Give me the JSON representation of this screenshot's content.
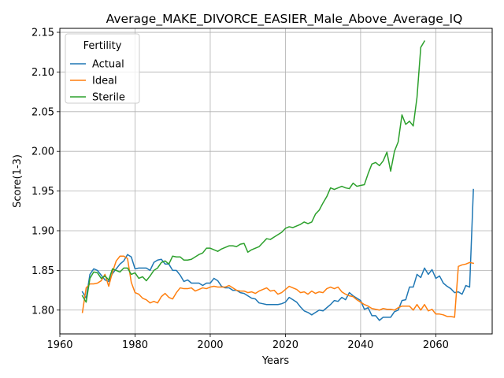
{
  "chart_data": {
    "type": "line",
    "title": "Average_MAKE_DIVORCE_EASIER_Male_Above_Average_IQ",
    "xlabel": "Years",
    "ylabel": "Score(1-3)",
    "xlim": [
      1960,
      2075
    ],
    "ylim": [
      1.77,
      2.155
    ],
    "xticks": [
      1960,
      1980,
      2000,
      2020,
      2040,
      2060
    ],
    "yticks": [
      1.8,
      1.85,
      1.9,
      1.95,
      2.0,
      2.05,
      2.1,
      2.15
    ],
    "grid": true,
    "legend": {
      "title": "Fertility",
      "placement": "top-left"
    },
    "series": [
      {
        "name": "Actual",
        "color": "#1f77b4",
        "points": [
          [
            1966,
            1.823
          ],
          [
            1967,
            1.815
          ],
          [
            1968,
            1.845
          ],
          [
            1969,
            1.852
          ],
          [
            1970,
            1.85
          ],
          [
            1971,
            1.844
          ],
          [
            1972,
            1.838
          ],
          [
            1973,
            1.836
          ],
          [
            1974,
            1.846
          ],
          [
            1975,
            1.852
          ],
          [
            1976,
            1.858
          ],
          [
            1977,
            1.862
          ],
          [
            1978,
            1.87
          ],
          [
            1979,
            1.867
          ],
          [
            1980,
            1.852
          ],
          [
            1981,
            1.853
          ],
          [
            1982,
            1.853
          ],
          [
            1983,
            1.853
          ],
          [
            1984,
            1.85
          ],
          [
            1985,
            1.86
          ],
          [
            1986,
            1.863
          ],
          [
            1987,
            1.864
          ],
          [
            1988,
            1.858
          ],
          [
            1989,
            1.858
          ],
          [
            1990,
            1.85
          ],
          [
            1991,
            1.85
          ],
          [
            1992,
            1.844
          ],
          [
            1993,
            1.836
          ],
          [
            1994,
            1.838
          ],
          [
            1995,
            1.834
          ],
          [
            1996,
            1.834
          ],
          [
            1997,
            1.834
          ],
          [
            1998,
            1.831
          ],
          [
            1999,
            1.834
          ],
          [
            2000,
            1.834
          ],
          [
            2001,
            1.84
          ],
          [
            2002,
            1.837
          ],
          [
            2003,
            1.83
          ],
          [
            2004,
            1.828
          ],
          [
            2005,
            1.828
          ],
          [
            2006,
            1.825
          ],
          [
            2007,
            1.825
          ],
          [
            2008,
            1.822
          ],
          [
            2009,
            1.821
          ],
          [
            2010,
            1.818
          ],
          [
            2011,
            1.815
          ],
          [
            2012,
            1.814
          ],
          [
            2013,
            1.809
          ],
          [
            2014,
            1.808
          ],
          [
            2015,
            1.807
          ],
          [
            2016,
            1.807
          ],
          [
            2017,
            1.807
          ],
          [
            2018,
            1.807
          ],
          [
            2019,
            1.808
          ],
          [
            2020,
            1.81
          ],
          [
            2021,
            1.816
          ],
          [
            2022,
            1.813
          ],
          [
            2023,
            1.81
          ],
          [
            2024,
            1.804
          ],
          [
            2025,
            1.799
          ],
          [
            2026,
            1.797
          ],
          [
            2027,
            1.794
          ],
          [
            2028,
            1.797
          ],
          [
            2029,
            1.8
          ],
          [
            2030,
            1.799
          ],
          [
            2031,
            1.803
          ],
          [
            2032,
            1.807
          ],
          [
            2033,
            1.812
          ],
          [
            2034,
            1.811
          ],
          [
            2035,
            1.816
          ],
          [
            2036,
            1.813
          ],
          [
            2037,
            1.822
          ],
          [
            2038,
            1.818
          ],
          [
            2039,
            1.815
          ],
          [
            2040,
            1.812
          ],
          [
            2041,
            1.801
          ],
          [
            2042,
            1.803
          ],
          [
            2043,
            1.793
          ],
          [
            2044,
            1.793
          ],
          [
            2045,
            1.787
          ],
          [
            2046,
            1.791
          ],
          [
            2047,
            1.791
          ],
          [
            2048,
            1.791
          ],
          [
            2049,
            1.798
          ],
          [
            2050,
            1.8
          ],
          [
            2051,
            1.812
          ],
          [
            2052,
            1.813
          ],
          [
            2053,
            1.829
          ],
          [
            2054,
            1.829
          ],
          [
            2055,
            1.845
          ],
          [
            2056,
            1.841
          ],
          [
            2057,
            1.853
          ],
          [
            2058,
            1.845
          ],
          [
            2059,
            1.851
          ],
          [
            2060,
            1.84
          ],
          [
            2061,
            1.843
          ],
          [
            2062,
            1.834
          ],
          [
            2063,
            1.83
          ],
          [
            2064,
            1.827
          ],
          [
            2065,
            1.822
          ],
          [
            2066,
            1.823
          ],
          [
            2067,
            1.82
          ],
          [
            2068,
            1.831
          ],
          [
            2069,
            1.829
          ],
          [
            2070,
            1.952
          ]
        ]
      },
      {
        "name": "Ideal",
        "color": "#ff7f0e",
        "points": [
          [
            1966,
            1.797
          ],
          [
            1967,
            1.828
          ],
          [
            1968,
            1.833
          ],
          [
            1969,
            1.833
          ],
          [
            1970,
            1.834
          ],
          [
            1971,
            1.837
          ],
          [
            1972,
            1.845
          ],
          [
            1973,
            1.83
          ],
          [
            1974,
            1.848
          ],
          [
            1975,
            1.862
          ],
          [
            1976,
            1.868
          ],
          [
            1977,
            1.868
          ],
          [
            1978,
            1.865
          ],
          [
            1979,
            1.835
          ],
          [
            1980,
            1.822
          ],
          [
            1981,
            1.82
          ],
          [
            1982,
            1.815
          ],
          [
            1983,
            1.813
          ],
          [
            1984,
            1.809
          ],
          [
            1985,
            1.811
          ],
          [
            1986,
            1.809
          ],
          [
            1987,
            1.817
          ],
          [
            1988,
            1.821
          ],
          [
            1989,
            1.816
          ],
          [
            1990,
            1.814
          ],
          [
            1991,
            1.822
          ],
          [
            1992,
            1.828
          ],
          [
            1993,
            1.827
          ],
          [
            1994,
            1.827
          ],
          [
            1995,
            1.828
          ],
          [
            1996,
            1.824
          ],
          [
            1997,
            1.826
          ],
          [
            1998,
            1.828
          ],
          [
            1999,
            1.827
          ],
          [
            2000,
            1.829
          ],
          [
            2001,
            1.83
          ],
          [
            2002,
            1.829
          ],
          [
            2003,
            1.829
          ],
          [
            2004,
            1.829
          ],
          [
            2005,
            1.831
          ],
          [
            2006,
            1.828
          ],
          [
            2007,
            1.825
          ],
          [
            2008,
            1.824
          ],
          [
            2009,
            1.824
          ],
          [
            2010,
            1.822
          ],
          [
            2011,
            1.823
          ],
          [
            2012,
            1.821
          ],
          [
            2013,
            1.824
          ],
          [
            2014,
            1.826
          ],
          [
            2015,
            1.828
          ],
          [
            2016,
            1.824
          ],
          [
            2017,
            1.825
          ],
          [
            2018,
            1.82
          ],
          [
            2019,
            1.822
          ],
          [
            2020,
            1.826
          ],
          [
            2021,
            1.83
          ],
          [
            2022,
            1.828
          ],
          [
            2023,
            1.826
          ],
          [
            2024,
            1.822
          ],
          [
            2025,
            1.823
          ],
          [
            2026,
            1.82
          ],
          [
            2027,
            1.824
          ],
          [
            2028,
            1.821
          ],
          [
            2029,
            1.823
          ],
          [
            2030,
            1.822
          ],
          [
            2031,
            1.827
          ],
          [
            2032,
            1.829
          ],
          [
            2033,
            1.827
          ],
          [
            2034,
            1.829
          ],
          [
            2035,
            1.823
          ],
          [
            2036,
            1.82
          ],
          [
            2037,
            1.818
          ],
          [
            2038,
            1.817
          ],
          [
            2039,
            1.813
          ],
          [
            2040,
            1.81
          ],
          [
            2041,
            1.807
          ],
          [
            2042,
            1.805
          ],
          [
            2043,
            1.802
          ],
          [
            2044,
            1.801
          ],
          [
            2045,
            1.8
          ],
          [
            2046,
            1.802
          ],
          [
            2047,
            1.801
          ],
          [
            2048,
            1.801
          ],
          [
            2049,
            1.8
          ],
          [
            2050,
            1.803
          ],
          [
            2051,
            1.805
          ],
          [
            2052,
            1.805
          ],
          [
            2053,
            1.805
          ],
          [
            2054,
            1.8
          ],
          [
            2055,
            1.807
          ],
          [
            2056,
            1.8
          ],
          [
            2057,
            1.807
          ],
          [
            2058,
            1.799
          ],
          [
            2059,
            1.801
          ],
          [
            2060,
            1.795
          ],
          [
            2061,
            1.795
          ],
          [
            2062,
            1.794
          ],
          [
            2063,
            1.792
          ],
          [
            2064,
            1.792
          ],
          [
            2065,
            1.791
          ],
          [
            2066,
            1.855
          ],
          [
            2067,
            1.857
          ],
          [
            2068,
            1.858
          ],
          [
            2069,
            1.86
          ],
          [
            2070,
            1.859
          ]
        ]
      },
      {
        "name": "Sterile",
        "color": "#2ca02c",
        "points": [
          [
            1966,
            1.818
          ],
          [
            1967,
            1.81
          ],
          [
            1968,
            1.84
          ],
          [
            1969,
            1.848
          ],
          [
            1970,
            1.847
          ],
          [
            1971,
            1.84
          ],
          [
            1972,
            1.843
          ],
          [
            1973,
            1.838
          ],
          [
            1974,
            1.852
          ],
          [
            1975,
            1.85
          ],
          [
            1976,
            1.848
          ],
          [
            1977,
            1.853
          ],
          [
            1978,
            1.853
          ],
          [
            1979,
            1.845
          ],
          [
            1980,
            1.847
          ],
          [
            1981,
            1.84
          ],
          [
            1982,
            1.842
          ],
          [
            1983,
            1.837
          ],
          [
            1984,
            1.843
          ],
          [
            1985,
            1.85
          ],
          [
            1986,
            1.853
          ],
          [
            1987,
            1.86
          ],
          [
            1988,
            1.862
          ],
          [
            1989,
            1.858
          ],
          [
            1990,
            1.868
          ],
          [
            1991,
            1.867
          ],
          [
            1992,
            1.867
          ],
          [
            1993,
            1.863
          ],
          [
            1994,
            1.863
          ],
          [
            1995,
            1.864
          ],
          [
            1996,
            1.867
          ],
          [
            1997,
            1.87
          ],
          [
            1998,
            1.872
          ],
          [
            1999,
            1.878
          ],
          [
            2000,
            1.878
          ],
          [
            2001,
            1.876
          ],
          [
            2002,
            1.874
          ],
          [
            2003,
            1.877
          ],
          [
            2004,
            1.879
          ],
          [
            2005,
            1.881
          ],
          [
            2006,
            1.881
          ],
          [
            2007,
            1.88
          ],
          [
            2008,
            1.883
          ],
          [
            2009,
            1.884
          ],
          [
            2010,
            1.873
          ],
          [
            2011,
            1.876
          ],
          [
            2012,
            1.878
          ],
          [
            2013,
            1.88
          ],
          [
            2014,
            1.885
          ],
          [
            2015,
            1.89
          ],
          [
            2016,
            1.889
          ],
          [
            2017,
            1.892
          ],
          [
            2018,
            1.895
          ],
          [
            2019,
            1.898
          ],
          [
            2020,
            1.903
          ],
          [
            2021,
            1.905
          ],
          [
            2022,
            1.904
          ],
          [
            2023,
            1.906
          ],
          [
            2024,
            1.908
          ],
          [
            2025,
            1.911
          ],
          [
            2026,
            1.909
          ],
          [
            2027,
            1.911
          ],
          [
            2028,
            1.921
          ],
          [
            2029,
            1.926
          ],
          [
            2030,
            1.935
          ],
          [
            2031,
            1.943
          ],
          [
            2032,
            1.954
          ],
          [
            2033,
            1.952
          ],
          [
            2034,
            1.954
          ],
          [
            2035,
            1.956
          ],
          [
            2036,
            1.954
          ],
          [
            2037,
            1.953
          ],
          [
            2038,
            1.96
          ],
          [
            2039,
            1.956
          ],
          [
            2040,
            1.957
          ],
          [
            2041,
            1.958
          ],
          [
            2042,
            1.972
          ],
          [
            2043,
            1.984
          ],
          [
            2044,
            1.986
          ],
          [
            2045,
            1.982
          ],
          [
            2046,
            1.988
          ],
          [
            2047,
            1.999
          ],
          [
            2048,
            1.975
          ],
          [
            2049,
            2.0
          ],
          [
            2050,
            2.012
          ],
          [
            2051,
            2.046
          ],
          [
            2052,
            2.034
          ],
          [
            2053,
            2.038
          ],
          [
            2054,
            2.032
          ],
          [
            2055,
            2.068
          ],
          [
            2056,
            2.131
          ],
          [
            2057,
            2.139
          ]
        ]
      }
    ]
  }
}
